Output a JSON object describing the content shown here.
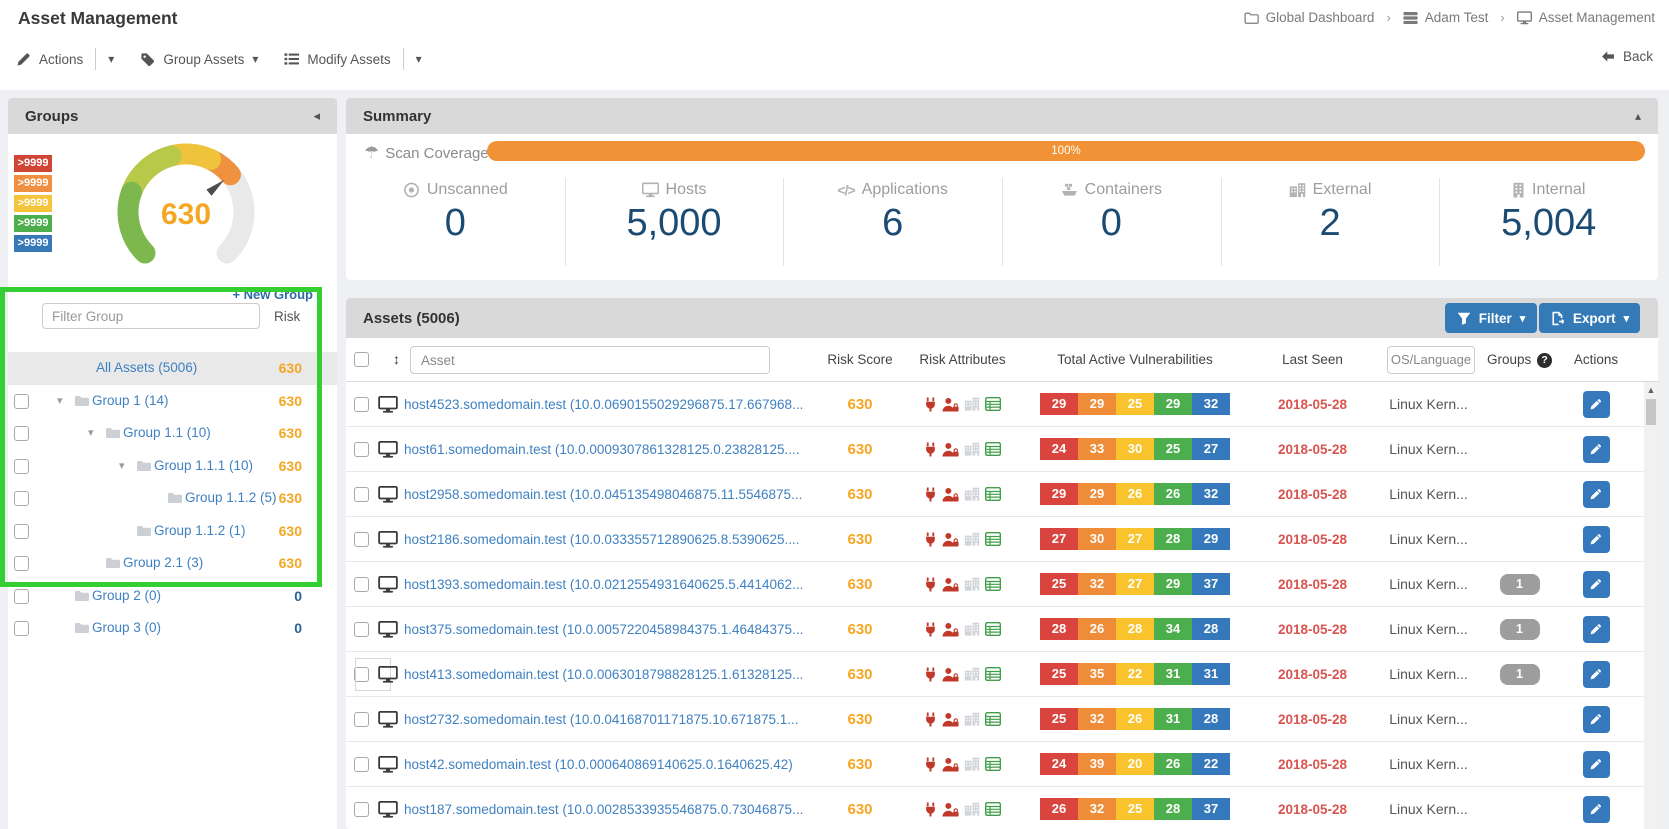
{
  "page_title": "Asset Management",
  "breadcrumb": {
    "items": [
      {
        "icon": "folder-icon",
        "label": "Global Dashboard"
      },
      {
        "icon": "server-icon",
        "label": "Adam Test"
      },
      {
        "icon": "monitor-icon",
        "label": "Asset Management"
      }
    ]
  },
  "toolbar": {
    "actions": "Actions",
    "group_assets": "Group Assets",
    "modify_assets": "Modify Assets",
    "back": "Back"
  },
  "groups": {
    "title": "Groups",
    "gauge_value": "630",
    "gauge_value_color": "#f5a623",
    "legend": [
      {
        "label": ">9999",
        "color": "#cf4637"
      },
      {
        "label": ">9999",
        "color": "#ee8f41"
      },
      {
        "label": ">9999",
        "color": "#f5c33c"
      },
      {
        "label": ">9999",
        "color": "#4cae4c"
      },
      {
        "label": ">9999",
        "color": "#3779b8"
      }
    ],
    "new_group": "+ New Group",
    "filter_placeholder": "Filter Group",
    "risk_header": "Risk",
    "tree": [
      {
        "label": "All Assets (5006)",
        "risk": "630",
        "level": 0,
        "caret": false,
        "folder": false,
        "checkbox": false,
        "selected": true
      },
      {
        "label": "Group 1 (14)",
        "risk": "630",
        "level": 0,
        "caret": true,
        "folder": true,
        "checkbox": true
      },
      {
        "label": "Group 1.1 (10)",
        "risk": "630",
        "level": 1,
        "caret": true,
        "folder": true,
        "checkbox": true
      },
      {
        "label": "Group 1.1.1 (10)",
        "risk": "630",
        "level": 2,
        "caret": true,
        "folder": true,
        "checkbox": true
      },
      {
        "label": "Group 1.1.2 (5)",
        "risk": "630",
        "level": 3,
        "caret": false,
        "folder": true,
        "checkbox": true
      },
      {
        "label": "Group 1.1.2 (1)",
        "risk": "630",
        "level": 2,
        "caret": false,
        "folder": true,
        "checkbox": true
      },
      {
        "label": "Group 2.1 (3)",
        "risk": "630",
        "level": 1,
        "caret": false,
        "folder": true,
        "checkbox": true
      },
      {
        "label": "Group 2 (0)",
        "risk": "0",
        "level": 0,
        "caret": false,
        "folder": true,
        "checkbox": true
      },
      {
        "label": "Group 3 (0)",
        "risk": "0",
        "level": 0,
        "caret": false,
        "folder": true,
        "checkbox": true
      }
    ],
    "annotation_color": "#33cf33"
  },
  "summary": {
    "title": "Summary",
    "scan_coverage_label": "Scan Coverage",
    "scan_coverage_value": "100%",
    "stats": [
      {
        "icon": "bullseye-icon",
        "label": "Unscanned",
        "value": "0"
      },
      {
        "icon": "monitor-icon",
        "label": "Hosts",
        "value": "5,000"
      },
      {
        "icon": "code-icon",
        "label": "Applications",
        "value": "6"
      },
      {
        "icon": "ship-icon",
        "label": "Containers",
        "value": "0"
      },
      {
        "icon": "city-icon",
        "label": "External",
        "value": "2"
      },
      {
        "icon": "building-icon",
        "label": "Internal",
        "value": "5,004"
      }
    ]
  },
  "assets": {
    "title": "Assets (5006)",
    "filter_button": "Filter",
    "export_button": "Export",
    "search_placeholder": "Asset",
    "columns": {
      "risk_score": "Risk Score",
      "risk_attributes": "Risk Attributes",
      "vulnerabilities": "Total Active Vulnerabilities",
      "last_seen": "Last Seen",
      "os_placeholder": "OS/Language",
      "groups": "Groups",
      "actions": "Actions"
    },
    "severity_colors": [
      "#d9453e",
      "#ef8c38",
      "#f8c32c",
      "#4cae4c",
      "#3579bc"
    ],
    "rows": [
      {
        "host": "host4523.somedomain.test (10.0.0690155029296875.17.667968...",
        "risk_score": "630",
        "vulns": [
          29,
          29,
          25,
          29,
          32
        ],
        "last_seen": "2018-05-28",
        "os": "Linux Kern...",
        "groups": "",
        "focused": false
      },
      {
        "host": "host61.somedomain.test (10.0.0009307861328125.0.23828125....",
        "risk_score": "630",
        "vulns": [
          24,
          33,
          30,
          25,
          27
        ],
        "last_seen": "2018-05-28",
        "os": "Linux Kern...",
        "groups": "",
        "focused": false
      },
      {
        "host": "host2958.somedomain.test (10.0.045135498046875.11.5546875...",
        "risk_score": "630",
        "vulns": [
          29,
          29,
          26,
          26,
          32
        ],
        "last_seen": "2018-05-28",
        "os": "Linux Kern...",
        "groups": "",
        "focused": false
      },
      {
        "host": "host2186.somedomain.test (10.0.033355712890625.8.5390625....",
        "risk_score": "630",
        "vulns": [
          27,
          30,
          27,
          28,
          29
        ],
        "last_seen": "2018-05-28",
        "os": "Linux Kern...",
        "groups": "",
        "focused": false
      },
      {
        "host": "host1393.somedomain.test (10.0.0212554931640625.5.4414062...",
        "risk_score": "630",
        "vulns": [
          25,
          32,
          27,
          29,
          37
        ],
        "last_seen": "2018-05-28",
        "os": "Linux Kern...",
        "groups": "1",
        "focused": false
      },
      {
        "host": "host375.somedomain.test (10.0.0057220458984375.1.46484375...",
        "risk_score": "630",
        "vulns": [
          28,
          26,
          28,
          34,
          28
        ],
        "last_seen": "2018-05-28",
        "os": "Linux Kern...",
        "groups": "1",
        "focused": false
      },
      {
        "host": "host413.somedomain.test (10.0.0063018798828125.1.61328125...",
        "risk_score": "630",
        "vulns": [
          25,
          35,
          22,
          31,
          31
        ],
        "last_seen": "2018-05-28",
        "os": "Linux Kern...",
        "groups": "1",
        "focused": true
      },
      {
        "host": "host2732.somedomain.test (10.0.04168701171875.10.671875.1...",
        "risk_score": "630",
        "vulns": [
          25,
          32,
          26,
          31,
          28
        ],
        "last_seen": "2018-05-28",
        "os": "Linux Kern...",
        "groups": "",
        "focused": false
      },
      {
        "host": "host42.somedomain.test (10.0.000640869140625.0.1640625.42)",
        "risk_score": "630",
        "vulns": [
          24,
          39,
          20,
          26,
          22
        ],
        "last_seen": "2018-05-28",
        "os": "Linux Kern...",
        "groups": "",
        "focused": false
      },
      {
        "host": "host187.somedomain.test (10.0.0028533935546875.0.73046875...",
        "risk_score": "630",
        "vulns": [
          26,
          32,
          25,
          28,
          37
        ],
        "last_seen": "2018-05-28",
        "os": "Linux Kern...",
        "groups": "",
        "focused": false
      }
    ]
  }
}
